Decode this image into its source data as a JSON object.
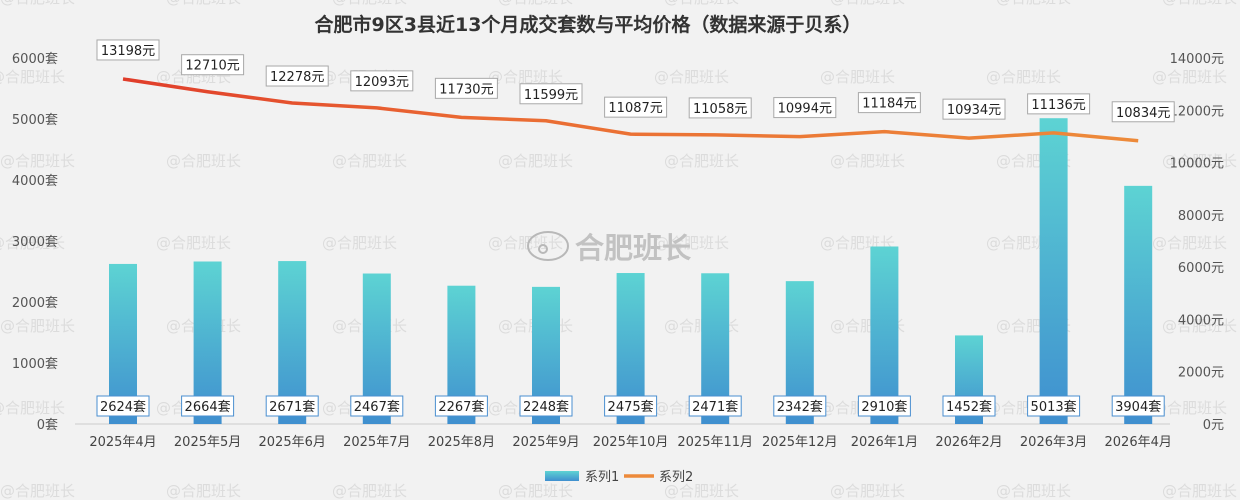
{
  "chart_data": {
    "type": "bar",
    "title": "合肥市9区3县近13个月成交套数与平均价格（数据来源于贝系）",
    "categories": [
      "2025年4月",
      "2025年5月",
      "2025年6月",
      "2025年7月",
      "2025年8月",
      "2025年9月",
      "2025年10月",
      "2025年11月",
      "2025年12月",
      "2026年1月",
      "2026年2月",
      "2026年3月",
      "2026年4月"
    ],
    "series": [
      {
        "name": "系列1",
        "type": "bar",
        "axis": "left",
        "values": [
          2624,
          2664,
          2671,
          2467,
          2267,
          2248,
          2475,
          2471,
          2342,
          2910,
          1452,
          5013,
          3904
        ],
        "labels": [
          "2624套",
          "2664套",
          "2671套",
          "2467套",
          "2267套",
          "2248套",
          "2475套",
          "2471套",
          "2342套",
          "2910套",
          "1452套",
          "5013套",
          "3904套"
        ]
      },
      {
        "name": "系列2",
        "type": "line",
        "axis": "right",
        "values": [
          13198,
          12710,
          12278,
          12093,
          11730,
          11599,
          11087,
          11058,
          10994,
          11184,
          10934,
          11136,
          10834
        ],
        "labels": [
          "13198元",
          "12710元",
          "12278元",
          "12093元",
          "11730元",
          "11599元",
          "11087元",
          "11058元",
          "10994元",
          "11184元",
          "10934元",
          "11136元",
          "10834元"
        ]
      }
    ],
    "left_axis": {
      "ylim": [
        0,
        6000
      ],
      "ticks": [
        {
          "value": 0,
          "label": "0套"
        },
        {
          "value": 1000,
          "label": "1000套"
        },
        {
          "value": 2000,
          "label": "2000套"
        },
        {
          "value": 3000,
          "label": "3000套"
        },
        {
          "value": 4000,
          "label": "4000套"
        },
        {
          "value": 5000,
          "label": "5000套"
        },
        {
          "value": 6000,
          "label": "6000套"
        }
      ]
    },
    "right_axis": {
      "ylim": [
        0,
        14000
      ],
      "ticks": [
        {
          "value": 0,
          "label": "0元"
        },
        {
          "value": 2000,
          "label": "2000元"
        },
        {
          "value": 4000,
          "label": "4000元"
        },
        {
          "value": 6000,
          "label": "6000元"
        },
        {
          "value": 8000,
          "label": "8000元"
        },
        {
          "value": 10000,
          "label": "10000元"
        },
        {
          "value": 12000,
          "label": "12000元"
        },
        {
          "value": 14000,
          "label": "14000元"
        }
      ]
    },
    "grid": false,
    "legend": {
      "position": "bottom",
      "entries": [
        "系列1",
        "系列2"
      ]
    },
    "colors": {
      "bar_top": "#5dd3d3",
      "bar_bottom": "#3f8fcf",
      "line_start": "#e03c2a",
      "line_end": "#ed8a3a",
      "label_border": "#4a8fd0",
      "price_label_border": "#a8a8a8"
    }
  },
  "watermark": {
    "text": "@合肥班长",
    "center_text": "合肥班长"
  }
}
